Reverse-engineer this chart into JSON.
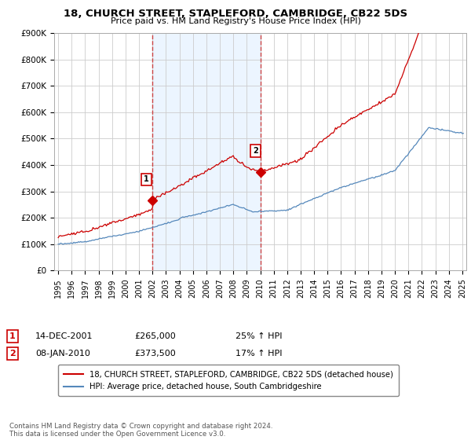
{
  "title": "18, CHURCH STREET, STAPLEFORD, CAMBRIDGE, CB22 5DS",
  "subtitle": "Price paid vs. HM Land Registry's House Price Index (HPI)",
  "legend_entries": [
    "18, CHURCH STREET, STAPLEFORD, CAMBRIDGE, CB22 5DS (detached house)",
    "HPI: Average price, detached house, South Cambridgeshire"
  ],
  "legend_colors": [
    "#cc0000",
    "#6699cc"
  ],
  "transaction1": {
    "label": "1",
    "date": "14-DEC-2001",
    "price": "£265,000",
    "hpi_change": "25% ↑ HPI"
  },
  "transaction2": {
    "label": "2",
    "date": "08-JAN-2010",
    "price": "£373,500",
    "hpi_change": "17% ↑ HPI"
  },
  "transaction1_x": 2001.96,
  "transaction2_x": 2010.04,
  "transaction1_y": 265000,
  "transaction2_y": 373500,
  "ylim": [
    0,
    900000
  ],
  "yticks": [
    0,
    100000,
    200000,
    300000,
    400000,
    500000,
    600000,
    700000,
    800000,
    900000
  ],
  "ytick_labels": [
    "£0",
    "£100K",
    "£200K",
    "£300K",
    "£400K",
    "£500K",
    "£600K",
    "£700K",
    "£800K",
    "£900K"
  ],
  "xlim_start": 1994.7,
  "xlim_end": 2025.3,
  "background_color": "#ffffff",
  "plot_bg_color": "#ffffff",
  "grid_color": "#cccccc",
  "red_color": "#cc0000",
  "blue_color": "#5588bb",
  "blue_fill": "#ddeeff",
  "footnote": "Contains HM Land Registry data © Crown copyright and database right 2024.\nThis data is licensed under the Open Government Licence v3.0."
}
